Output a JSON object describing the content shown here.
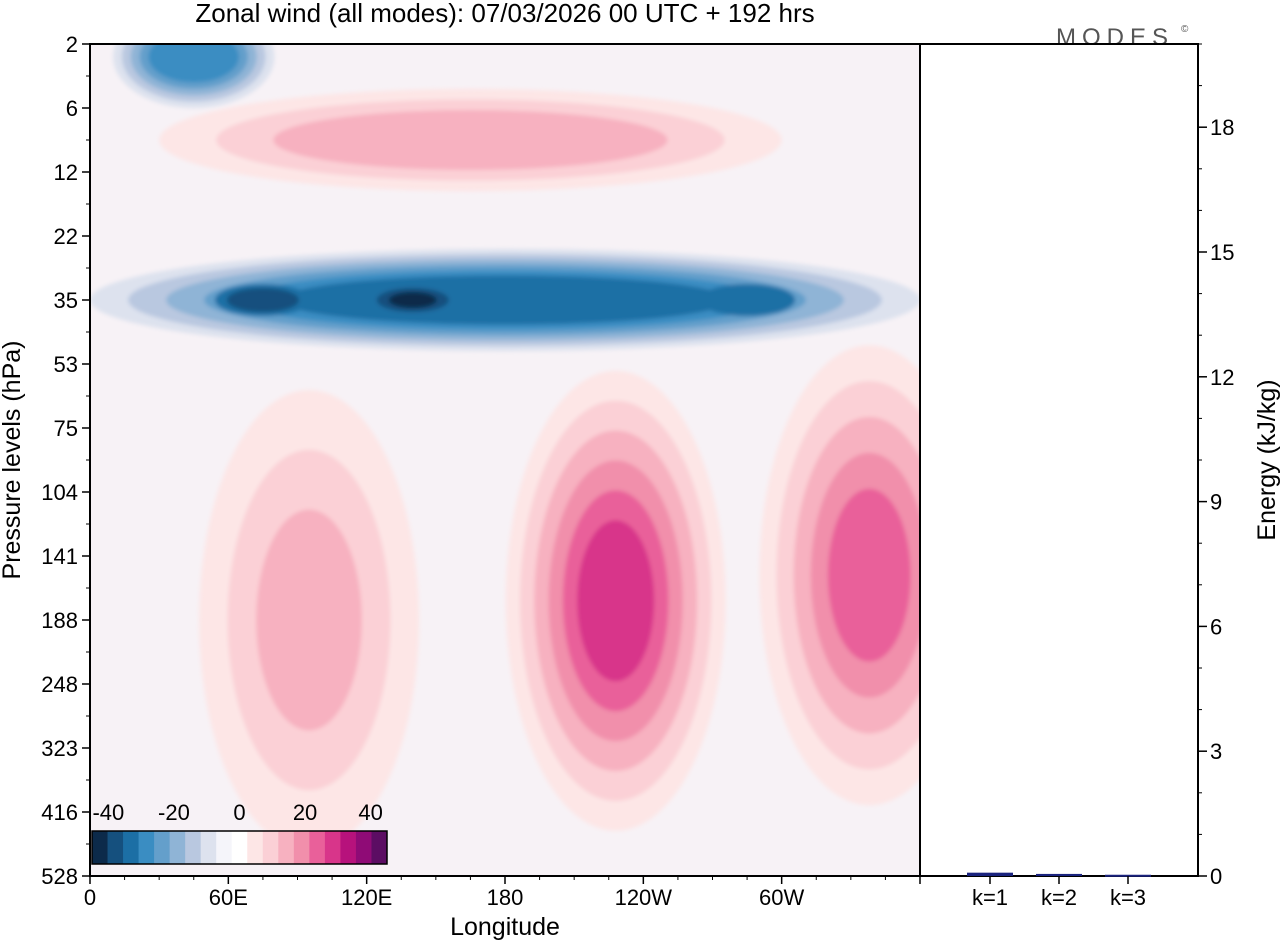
{
  "brand": "MODES",
  "brand_mark": "©",
  "chart_data": [
    {
      "type": "heatmap",
      "title": "Zonal wind (all modes):  07/03/2026  00 UTC  + 192 hrs",
      "xlabel": "Longitude",
      "ylabel": "Pressure levels (hPa)",
      "x_ticks": [
        "0",
        "60E",
        "120E",
        "180",
        "120W",
        "60W"
      ],
      "x_tick_values": [
        0,
        60,
        120,
        180,
        240,
        300
      ],
      "xlim": [
        0,
        360
      ],
      "y_ticks": [
        "2",
        "6",
        "12",
        "22",
        "35",
        "53",
        "75",
        "104",
        "141",
        "188",
        "248",
        "323",
        "416",
        "528"
      ],
      "colorbar": {
        "labels": [
          "-40",
          "-20",
          "0",
          "20",
          "40"
        ],
        "label_values": [
          -40,
          -20,
          0,
          20,
          40
        ],
        "range": [
          -45,
          45
        ],
        "step": 5,
        "colors": [
          "#0c2a4a",
          "#15507e",
          "#1c6fa5",
          "#3a8dc2",
          "#649fcb",
          "#8fb4d6",
          "#b9c8e0",
          "#dde2ee",
          "#f5f5fa",
          "#ffffff",
          "#fde6e6",
          "#fbd0d6",
          "#f7b1c0",
          "#f18fab",
          "#e9609a",
          "#d8358a",
          "#b7127c",
          "#8f0b76",
          "#5c0d63"
        ]
      },
      "features": [
        {
          "name": "upper-stratosphere-easterly",
          "label": "easterly band near 2 hPa",
          "lon_range": [
            10,
            80
          ],
          "level_index": 0.2,
          "value": -25
        },
        {
          "name": "stratospheric-westerly-6-12",
          "label": "westerly band 6-12 hPa",
          "lon_range": [
            30,
            300
          ],
          "level_index": 1.5,
          "value": 15
        },
        {
          "name": "stratospheric-easterly-jet",
          "label": "easterly jet 22-53 hPa",
          "lon_range": [
            0,
            360
          ],
          "level_index": 4.0,
          "value": -30,
          "peaks": [
            {
              "lon": 75,
              "value": -38
            },
            {
              "lon": 140,
              "value": -40
            },
            {
              "lon": 285,
              "value": -30
            }
          ]
        },
        {
          "name": "subtropical-westerly-jet-pacific",
          "label": "westerly jet near 120W",
          "lon_center": 228,
          "level_index": 8.7,
          "value": 33
        },
        {
          "name": "subtropical-westerly-jet-atlantic",
          "label": "westerly jet near 20W",
          "lon_center": 338,
          "level_index": 8.3,
          "value": 25
        },
        {
          "name": "tropospheric-westerly-africa",
          "label": "westerly near 95E",
          "lon_center": 95,
          "level_index": 9.0,
          "value": 15
        }
      ]
    },
    {
      "type": "bar",
      "ylabel": "Energy (kJ/kg)",
      "categories": [
        "k=1",
        "k=2",
        "k=3"
      ],
      "values": [
        0.08,
        0.05,
        0.03
      ],
      "ylim": [
        0,
        20
      ],
      "y_ticks": [
        "0",
        "3",
        "6",
        "9",
        "12",
        "15",
        "18"
      ],
      "y_tick_values": [
        0,
        3,
        6,
        9,
        12,
        15,
        18
      ],
      "bar_color": "#1a237e"
    }
  ]
}
